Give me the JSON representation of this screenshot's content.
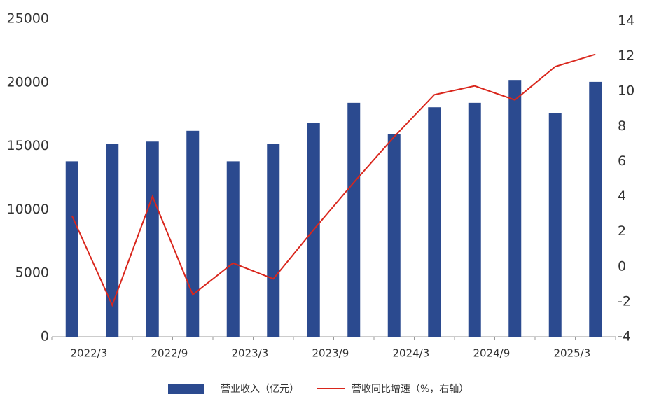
{
  "chart_data": {
    "type": "bar-line",
    "categories": [
      "2022/3",
      null,
      "2022/9",
      null,
      "2023/3",
      null,
      "2023/9",
      null,
      "2024/3",
      null,
      "2024/9",
      null,
      "2025/3",
      null
    ],
    "series": [
      {
        "name": "营业收入（亿元）",
        "type": "bar",
        "color": "#2b4a8f",
        "values": [
          13800,
          15150,
          15350,
          16200,
          13800,
          15150,
          16800,
          18400,
          15950,
          18050,
          18400,
          20200,
          17600,
          20050
        ]
      },
      {
        "name": "营收同比增速（%，右轴）",
        "type": "line",
        "axis": "y2",
        "color": "#d9261c",
        "values": [
          2.9,
          -2.2,
          4.0,
          -1.6,
          0.2,
          -0.7,
          2.1,
          4.8,
          7.4,
          9.8,
          10.3,
          9.5,
          11.4,
          12.1
        ]
      }
    ],
    "ylim": [
      0,
      25000
    ],
    "yticks": [
      0,
      5000,
      10000,
      15000,
      20000,
      25000
    ],
    "y2lim": [
      -4,
      14
    ],
    "y2ticks": [
      -4,
      -2,
      0,
      2,
      4,
      6,
      8,
      10,
      12,
      14
    ],
    "grid": false,
    "legend": "bottom"
  }
}
